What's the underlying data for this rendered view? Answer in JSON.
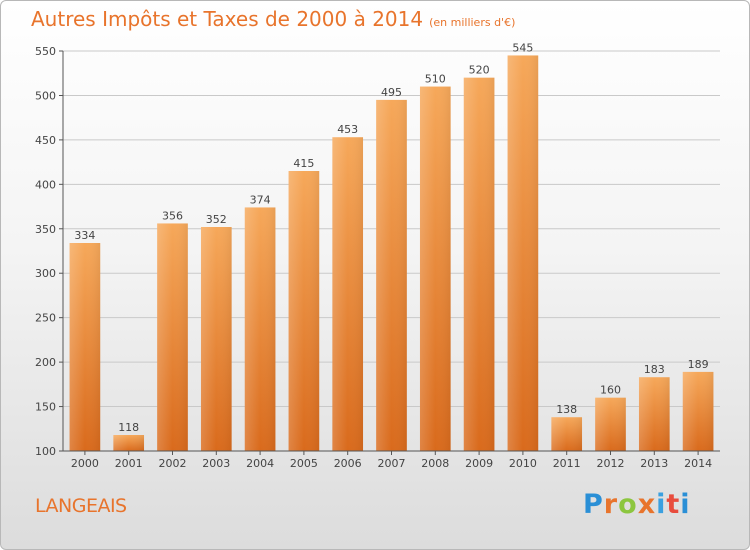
{
  "title": "Autres Impôts et Taxes de 2000 à 2014",
  "title_unit": "(en milliers d'€)",
  "location": "LANGEAIS",
  "logo": {
    "text": "Proxiti",
    "letter_colors": [
      "#2a8fd6",
      "#e8742c",
      "#8cc63f",
      "#e8742c",
      "#3aa0e0",
      "#e84c3d",
      "#2a8fd6"
    ]
  },
  "colors": {
    "title": "#e8742c",
    "bar_light": "#f6a85a",
    "bar_dark": "#d96a1c",
    "grid": "#c9c9c9",
    "axis": "#555555"
  },
  "chart_data": {
    "type": "bar",
    "categories": [
      "2000",
      "2001",
      "2002",
      "2003",
      "2004",
      "2005",
      "2006",
      "2007",
      "2008",
      "2009",
      "2010",
      "2011",
      "2012",
      "2013",
      "2014"
    ],
    "values": [
      334,
      118,
      356,
      352,
      374,
      415,
      453,
      495,
      510,
      520,
      545,
      138,
      160,
      183,
      189
    ],
    "ylim": [
      100,
      550
    ],
    "yticks": [
      100,
      150,
      200,
      250,
      300,
      350,
      400,
      450,
      500,
      550
    ],
    "grid": true
  }
}
